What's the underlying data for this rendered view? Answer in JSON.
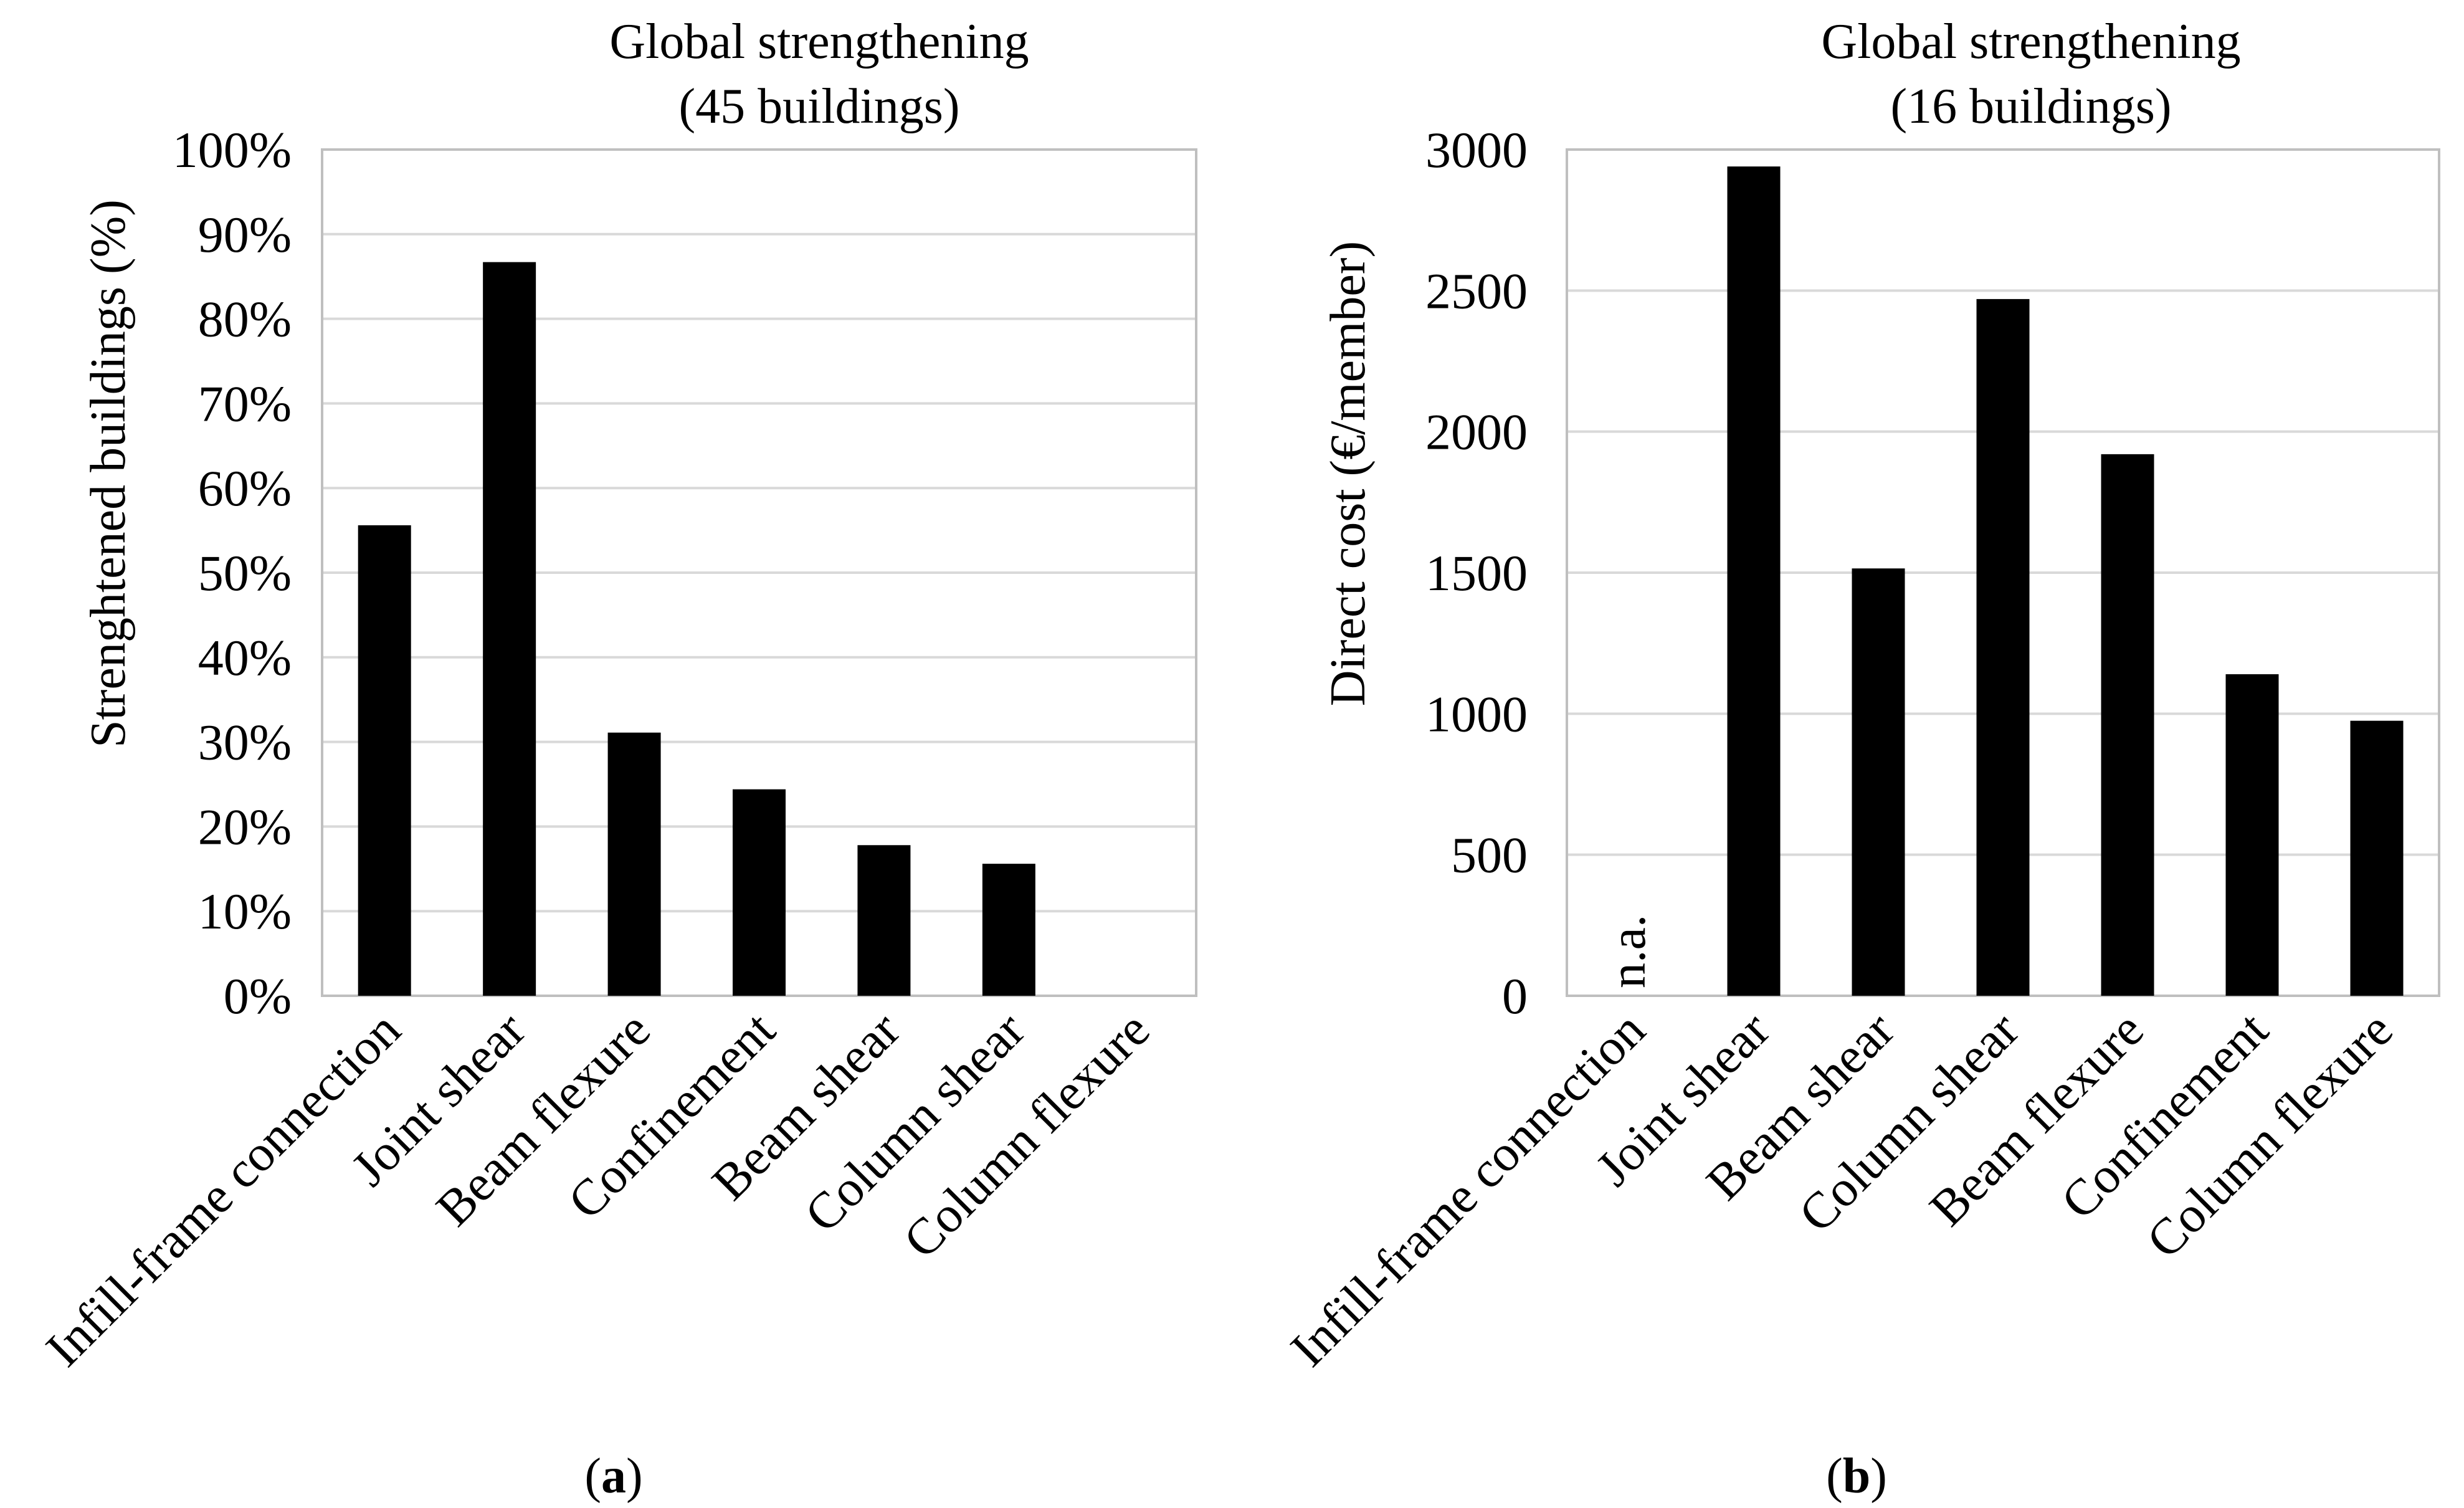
{
  "chart_data": [
    {
      "type": "bar",
      "panel": "a",
      "title": [
        "Global strengthening",
        "(45 buildings)"
      ],
      "xlabel": "",
      "ylabel": "Strenghtened buildings (%)",
      "categories": [
        "Infill-frame connection",
        "Joint shear",
        "Beam flexure",
        "Confinement",
        "Beam shear",
        "Column shear",
        "Column flexure"
      ],
      "values": [
        55.6,
        86.7,
        31.1,
        24.4,
        17.8,
        15.6,
        0
      ],
      "ylim": [
        0,
        100
      ],
      "yticks": [
        0,
        10,
        20,
        30,
        40,
        50,
        60,
        70,
        80,
        90,
        100
      ],
      "ytick_labels": [
        "0%",
        "10%",
        "20%",
        "30%",
        "40%",
        "50%",
        "60%",
        "70%",
        "80%",
        "90%",
        "100%"
      ],
      "grid": true,
      "bar_color": "#000000"
    },
    {
      "type": "bar",
      "panel": "b",
      "title": [
        "Global strengthening",
        "(16 buildings)"
      ],
      "xlabel": "",
      "ylabel": "Direct cost (€/member)",
      "categories": [
        "Infill-frame connection",
        "Joint shear",
        "Beam shear",
        "Column shear",
        "Beam flexure",
        "Confinement",
        "Column flexure"
      ],
      "values": [
        null,
        2940,
        1515,
        2470,
        1920,
        1140,
        975
      ],
      "annotations": [
        {
          "category": "Infill-frame connection",
          "text": "n.a."
        }
      ],
      "ylim": [
        0,
        3000
      ],
      "yticks": [
        0,
        500,
        1000,
        1500,
        2000,
        2500,
        3000
      ],
      "ytick_labels": [
        "0",
        "500",
        "1000",
        "1500",
        "2000",
        "2500",
        "3000"
      ],
      "grid": true,
      "bar_color": "#000000"
    }
  ],
  "panel_labels": [
    {
      "open": "(",
      "letter": "a",
      "close": ")"
    },
    {
      "open": "(",
      "letter": "b",
      "close": ")"
    }
  ]
}
